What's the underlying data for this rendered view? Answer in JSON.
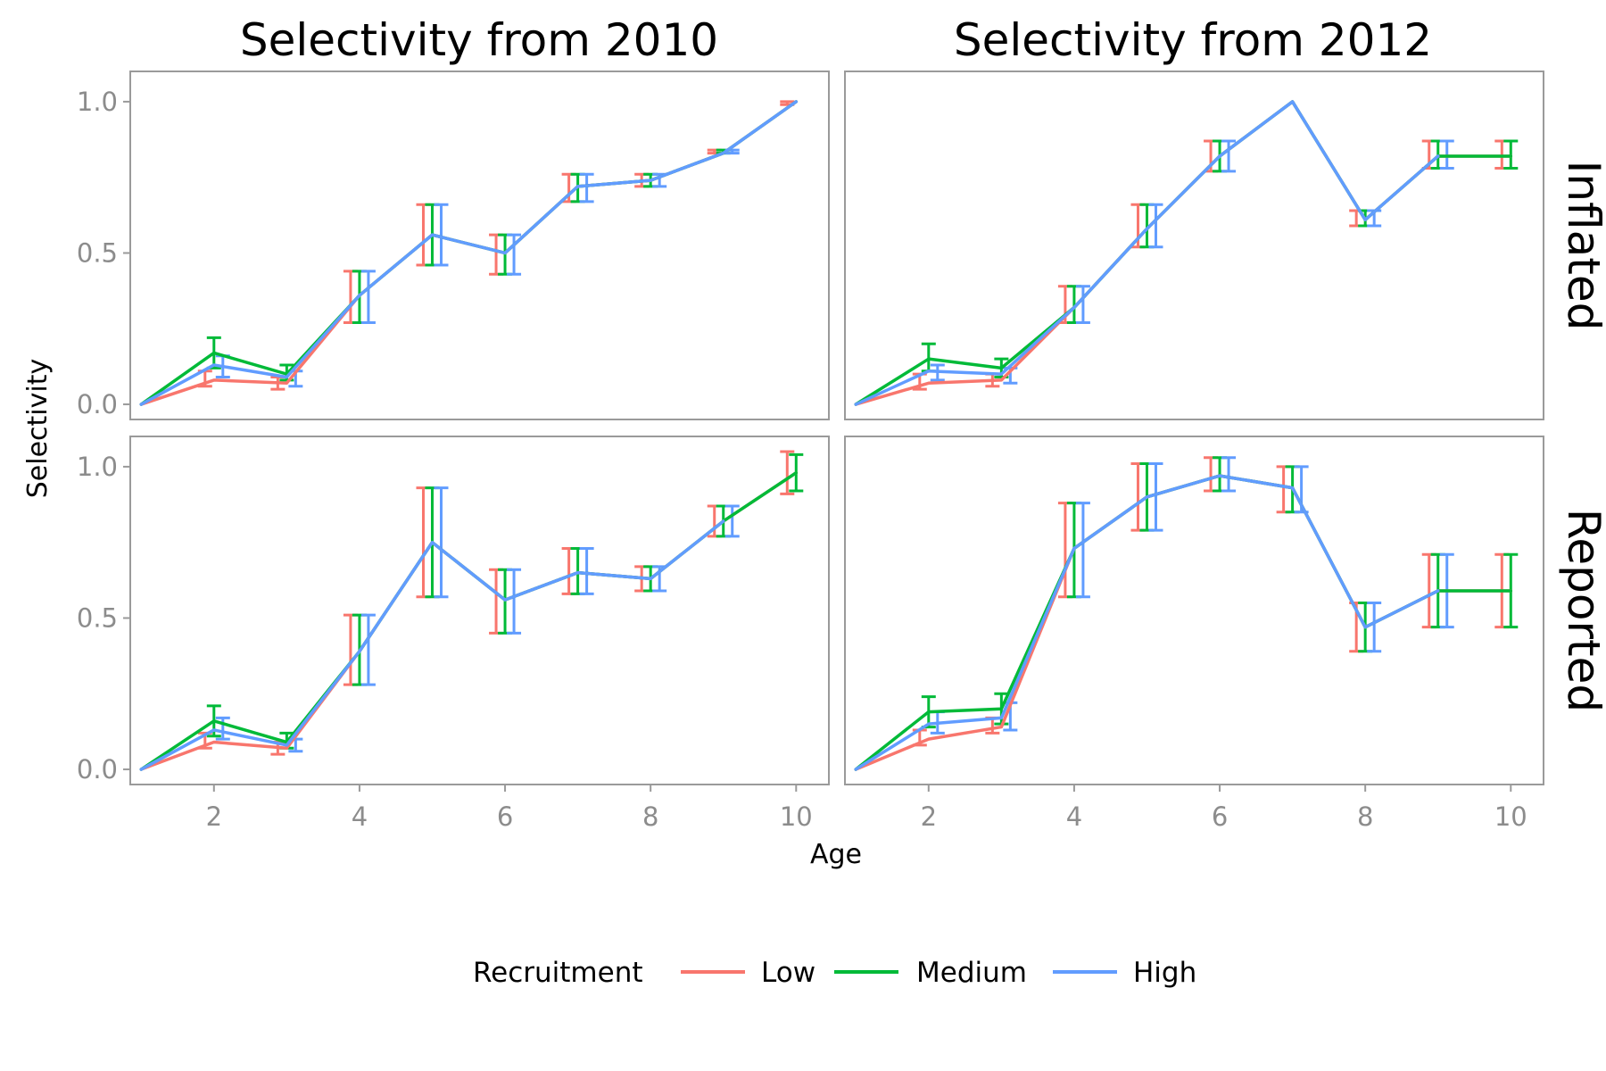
{
  "chart_data": {
    "type": "line",
    "xlabel": "Age",
    "ylabel": "Selectivity",
    "xlim": [
      0.85,
      10.45
    ],
    "ylim": [
      -0.05,
      1.1
    ],
    "x_ticks": [
      2,
      4,
      6,
      8,
      10
    ],
    "y_ticks": [
      0.0,
      0.5,
      1.0
    ],
    "y_tick_labels": [
      "0.0",
      "0.5",
      "1.0"
    ],
    "column_strips": [
      "Selectivity from 2010",
      "Selectivity from 2012"
    ],
    "row_strips": [
      "Inflated",
      "Reported"
    ],
    "legend": {
      "title": "Recruitment",
      "position": "bottom",
      "entries": [
        {
          "name": "Low",
          "color": "#F8766D"
        },
        {
          "name": "Medium",
          "color": "#00BA38"
        },
        {
          "name": "High",
          "color": "#619CFF"
        }
      ]
    },
    "panels": [
      {
        "col": 0,
        "row": 0,
        "series": [
          {
            "name": "Low",
            "x": [
              1,
              2,
              3,
              4,
              5,
              6,
              7,
              8,
              9,
              10
            ],
            "y": [
              0,
              0.08,
              0.07,
              0.36,
              0.56,
              0.5,
              0.72,
              0.74,
              0.83,
              1.0
            ],
            "ymin": [
              0,
              0.06,
              0.05,
              0.27,
              0.46,
              0.43,
              0.67,
              0.72,
              0.83,
              0.99
            ],
            "ymax": [
              0,
              0.11,
              0.09,
              0.44,
              0.66,
              0.56,
              0.76,
              0.76,
              0.84,
              1.0
            ]
          },
          {
            "name": "Medium",
            "x": [
              1,
              2,
              3,
              4,
              5,
              6,
              7,
              8,
              9,
              10
            ],
            "y": [
              0,
              0.17,
              0.1,
              0.36,
              0.56,
              0.5,
              0.72,
              0.74,
              0.83,
              1.0
            ],
            "ymin": [
              0,
              0.12,
              0.08,
              0.27,
              0.46,
              0.43,
              0.67,
              0.72,
              0.83,
              1.0
            ],
            "ymax": [
              0,
              0.22,
              0.13,
              0.44,
              0.66,
              0.56,
              0.76,
              0.76,
              0.84,
              1.0
            ]
          },
          {
            "name": "High",
            "x": [
              1,
              2,
              3,
              4,
              5,
              6,
              7,
              8,
              9,
              10
            ],
            "y": [
              0,
              0.13,
              0.09,
              0.36,
              0.56,
              0.5,
              0.72,
              0.74,
              0.83,
              1.0
            ],
            "ymin": [
              0,
              0.09,
              0.06,
              0.27,
              0.46,
              0.43,
              0.67,
              0.72,
              0.83,
              1.0
            ],
            "ymax": [
              0,
              0.16,
              0.11,
              0.44,
              0.66,
              0.56,
              0.76,
              0.76,
              0.84,
              1.0
            ]
          }
        ]
      },
      {
        "col": 1,
        "row": 0,
        "series": [
          {
            "name": "Low",
            "x": [
              1,
              2,
              3,
              4,
              5,
              6,
              7,
              8,
              9,
              10
            ],
            "y": [
              0,
              0.07,
              0.08,
              0.32,
              0.58,
              0.82,
              1.0,
              0.61,
              0.82,
              0.82
            ],
            "ymin": [
              0,
              0.05,
              0.06,
              0.27,
              0.52,
              0.77,
              1.0,
              0.59,
              0.78,
              0.78
            ],
            "ymax": [
              0,
              0.1,
              0.1,
              0.39,
              0.66,
              0.87,
              1.0,
              0.64,
              0.87,
              0.87
            ]
          },
          {
            "name": "Medium",
            "x": [
              1,
              2,
              3,
              4,
              5,
              6,
              7,
              8,
              9,
              10
            ],
            "y": [
              0,
              0.15,
              0.12,
              0.32,
              0.58,
              0.82,
              1.0,
              0.61,
              0.82,
              0.82
            ],
            "ymin": [
              0,
              0.11,
              0.09,
              0.27,
              0.52,
              0.77,
              1.0,
              0.59,
              0.78,
              0.78
            ],
            "ymax": [
              0,
              0.2,
              0.15,
              0.39,
              0.66,
              0.87,
              1.0,
              0.64,
              0.87,
              0.87
            ]
          },
          {
            "name": "High",
            "x": [
              1,
              2,
              3,
              4,
              5,
              6,
              7,
              8,
              9
            ],
            "y": [
              0,
              0.11,
              0.1,
              0.32,
              0.58,
              0.82,
              1.0,
              0.61,
              0.82
            ],
            "ymin": [
              0,
              0.08,
              0.07,
              0.27,
              0.52,
              0.77,
              1.0,
              0.59,
              0.78
            ],
            "ymax": [
              0,
              0.13,
              0.12,
              0.39,
              0.66,
              0.87,
              1.0,
              0.64,
              0.87
            ]
          }
        ]
      },
      {
        "col": 0,
        "row": 1,
        "series": [
          {
            "name": "Low",
            "x": [
              1,
              2,
              3,
              4,
              5,
              6,
              7,
              8,
              9,
              10
            ],
            "y": [
              0,
              0.09,
              0.07,
              0.39,
              0.75,
              0.56,
              0.65,
              0.63,
              0.82,
              0.98
            ],
            "ymin": [
              0,
              0.07,
              0.05,
              0.28,
              0.57,
              0.45,
              0.58,
              0.59,
              0.77,
              0.91
            ],
            "ymax": [
              0,
              0.12,
              0.09,
              0.51,
              0.93,
              0.66,
              0.73,
              0.67,
              0.87,
              1.05
            ]
          },
          {
            "name": "Medium",
            "x": [
              1,
              2,
              3,
              4,
              5,
              6,
              7,
              8,
              9,
              10
            ],
            "y": [
              0,
              0.16,
              0.09,
              0.39,
              0.75,
              0.56,
              0.65,
              0.63,
              0.82,
              0.98
            ],
            "ymin": [
              0,
              0.11,
              0.07,
              0.28,
              0.57,
              0.45,
              0.58,
              0.59,
              0.77,
              0.92
            ],
            "ymax": [
              0,
              0.21,
              0.12,
              0.51,
              0.93,
              0.66,
              0.73,
              0.67,
              0.87,
              1.04
            ]
          },
          {
            "name": "High",
            "x": [
              1,
              2,
              3,
              4,
              5,
              6,
              7,
              8,
              9
            ],
            "y": [
              0,
              0.13,
              0.08,
              0.39,
              0.75,
              0.56,
              0.65,
              0.63,
              0.82
            ],
            "ymin": [
              0,
              0.1,
              0.06,
              0.28,
              0.57,
              0.45,
              0.58,
              0.59,
              0.77
            ],
            "ymax": [
              0,
              0.17,
              0.1,
              0.51,
              0.93,
              0.66,
              0.73,
              0.67,
              0.87
            ]
          }
        ]
      },
      {
        "col": 1,
        "row": 1,
        "series": [
          {
            "name": "Low",
            "x": [
              1,
              2,
              3,
              4,
              5,
              6,
              7,
              8,
              9,
              10
            ],
            "y": [
              0,
              0.1,
              0.14,
              0.73,
              0.9,
              0.97,
              0.93,
              0.47,
              0.59,
              0.59
            ],
            "ymin": [
              0,
              0.08,
              0.12,
              0.57,
              0.79,
              0.92,
              0.85,
              0.39,
              0.47,
              0.47
            ],
            "ymax": [
              0,
              0.13,
              0.17,
              0.88,
              1.01,
              1.03,
              1.0,
              0.55,
              0.71,
              0.71
            ]
          },
          {
            "name": "Medium",
            "x": [
              1,
              2,
              3,
              4,
              5,
              6,
              7,
              8,
              9,
              10
            ],
            "y": [
              0,
              0.19,
              0.2,
              0.73,
              0.9,
              0.97,
              0.93,
              0.47,
              0.59,
              0.59
            ],
            "ymin": [
              0,
              0.14,
              0.15,
              0.57,
              0.79,
              0.92,
              0.85,
              0.39,
              0.47,
              0.47
            ],
            "ymax": [
              0,
              0.24,
              0.25,
              0.88,
              1.01,
              1.03,
              1.0,
              0.55,
              0.71,
              0.71
            ]
          },
          {
            "name": "High",
            "x": [
              1,
              2,
              3,
              4,
              5,
              6,
              7,
              8,
              9
            ],
            "y": [
              0,
              0.15,
              0.17,
              0.73,
              0.9,
              0.97,
              0.93,
              0.47,
              0.59
            ],
            "ymin": [
              0,
              0.12,
              0.13,
              0.57,
              0.79,
              0.92,
              0.85,
              0.39,
              0.47
            ],
            "ymax": [
              0,
              0.19,
              0.22,
              0.88,
              1.01,
              1.03,
              1.0,
              0.55,
              0.71
            ]
          }
        ]
      }
    ]
  }
}
